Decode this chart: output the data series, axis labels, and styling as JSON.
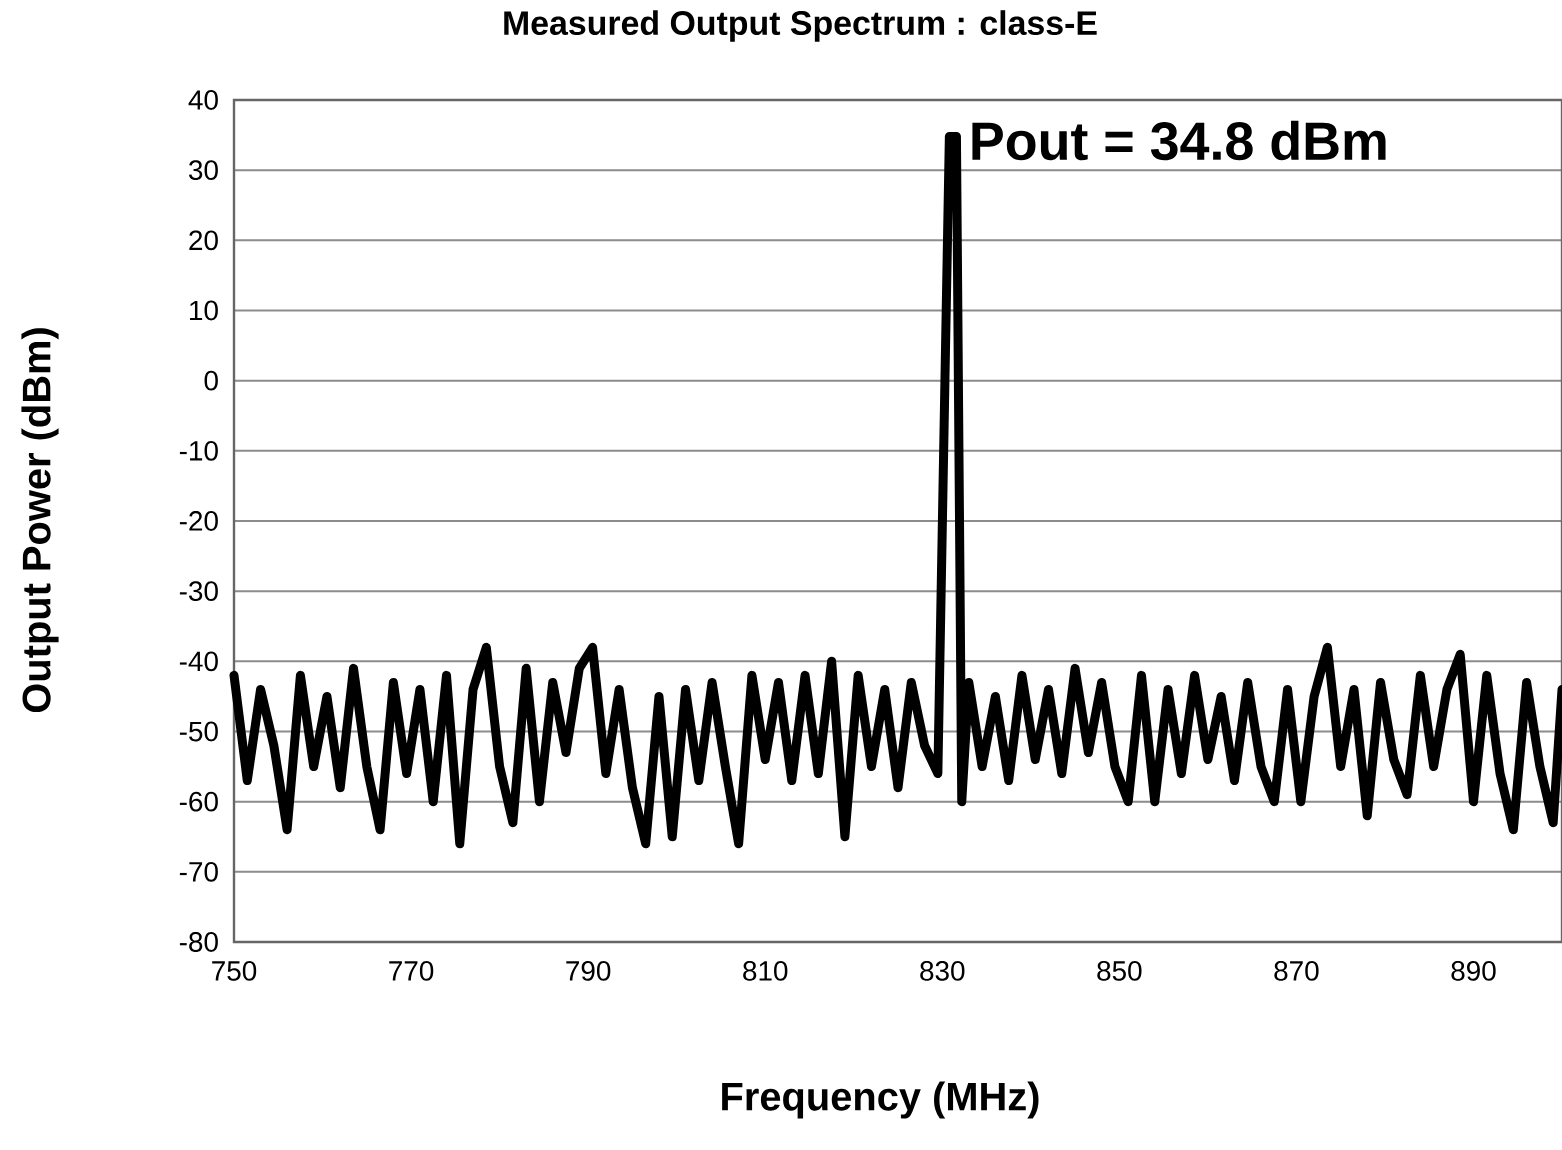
{
  "chart_data": {
    "type": "line",
    "title": "Measured Output Spectrum : class-E",
    "xlabel": "Frequency (MHz)",
    "ylabel": "Output Power (dBm)",
    "xlim": [
      750,
      900
    ],
    "xticks": [
      750,
      770,
      790,
      810,
      830,
      850,
      870,
      890
    ],
    "ylim": [
      -80,
      40
    ],
    "yticks": [
      -80,
      -70,
      -60,
      -50,
      -40,
      -30,
      -20,
      -10,
      0,
      10,
      20,
      30,
      40
    ],
    "grid": "y",
    "marker": "none",
    "line_style": "solid",
    "annotations": [
      {
        "text": "Pout = 34.8 dBm",
        "x": 831.6,
        "y": 34.8
      }
    ],
    "series": [
      {
        "color": "#000000",
        "x": [
          750,
          751.5,
          753,
          754.5,
          756,
          757.5,
          759,
          760.5,
          762,
          763.5,
          765,
          766.5,
          768,
          769.5,
          771,
          772.5,
          774,
          775.5,
          777,
          778.5,
          780,
          781.5,
          783,
          784.5,
          786,
          787.5,
          789,
          790.5,
          792,
          793.5,
          795,
          796.5,
          798,
          799.5,
          801,
          802.5,
          804,
          805.5,
          807,
          808.5,
          810,
          811.5,
          813,
          814.5,
          816,
          817.5,
          819,
          820.5,
          822,
          823.5,
          825,
          826.5,
          828,
          829.5,
          830.3,
          830.8,
          831.6,
          832.2,
          833,
          834.5,
          836,
          837.5,
          839,
          840.5,
          842,
          843.5,
          845,
          846.5,
          848,
          849.5,
          851,
          852.5,
          854,
          855.5,
          857,
          858.5,
          860,
          861.5,
          863,
          864.5,
          866,
          867.5,
          869,
          870.5,
          872,
          873.5,
          875,
          876.5,
          878,
          879.5,
          881,
          882.5,
          884,
          885.5,
          887,
          888.5,
          890,
          891.5,
          893,
          894.5,
          896,
          897.5,
          899,
          900
        ],
        "values": [
          -42,
          -57,
          -44,
          -52,
          -64,
          -42,
          -55,
          -45,
          -58,
          -41,
          -55,
          -64,
          -43,
          -56,
          -44,
          -60,
          -42,
          -66,
          -44,
          -38,
          -55,
          -63,
          -41,
          -60,
          -43,
          -53,
          -41,
          -38,
          -56,
          -44,
          -58,
          -66,
          -45,
          -65,
          -44,
          -57,
          -43,
          -55,
          -66,
          -42,
          -54,
          -43,
          -57,
          -42,
          -56,
          -40,
          -65,
          -42,
          -55,
          -44,
          -58,
          -43,
          -52,
          -56,
          0,
          34.8,
          34.8,
          -60,
          -43,
          -55,
          -45,
          -57,
          -42,
          -54,
          -44,
          -56,
          -41,
          -53,
          -43,
          -55,
          -60,
          -42,
          -60,
          -44,
          -56,
          -42,
          -54,
          -45,
          -57,
          -43,
          -55,
          -60,
          -44,
          -60,
          -45,
          -38,
          -55,
          -44,
          -62,
          -43,
          -54,
          -59,
          -42,
          -55,
          -44,
          -39,
          -60,
          -42,
          -56,
          -64,
          -43,
          -55,
          -63,
          -44
        ]
      }
    ]
  }
}
